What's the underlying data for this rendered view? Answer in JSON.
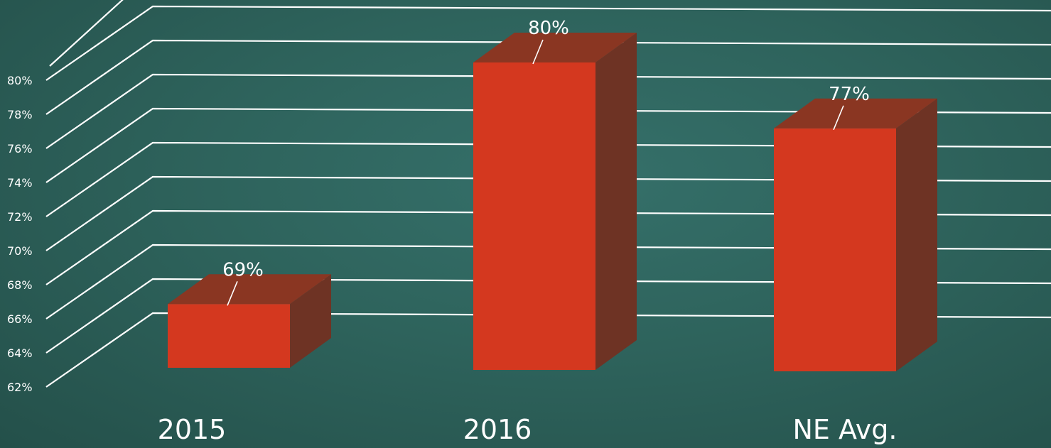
{
  "chart_data": {
    "type": "bar",
    "categories": [
      "2015",
      "2016",
      "NE Avg."
    ],
    "values": [
      69,
      80,
      77
    ],
    "data_labels": [
      "69%",
      "80%",
      "77%"
    ],
    "y_ticks": [
      "62%",
      "64%",
      "66%",
      "68%",
      "70%",
      "72%",
      "74%",
      "76%",
      "78%",
      "80%"
    ],
    "ylim": [
      62,
      80
    ],
    "grid": true,
    "style": "3d-column",
    "colors": {
      "background": "#2e635c",
      "bar_front": "#d4381f",
      "bar_top": "#8a3622",
      "bar_side": "#6e3324",
      "grid": "#ffffff",
      "text": "#ffffff"
    }
  }
}
